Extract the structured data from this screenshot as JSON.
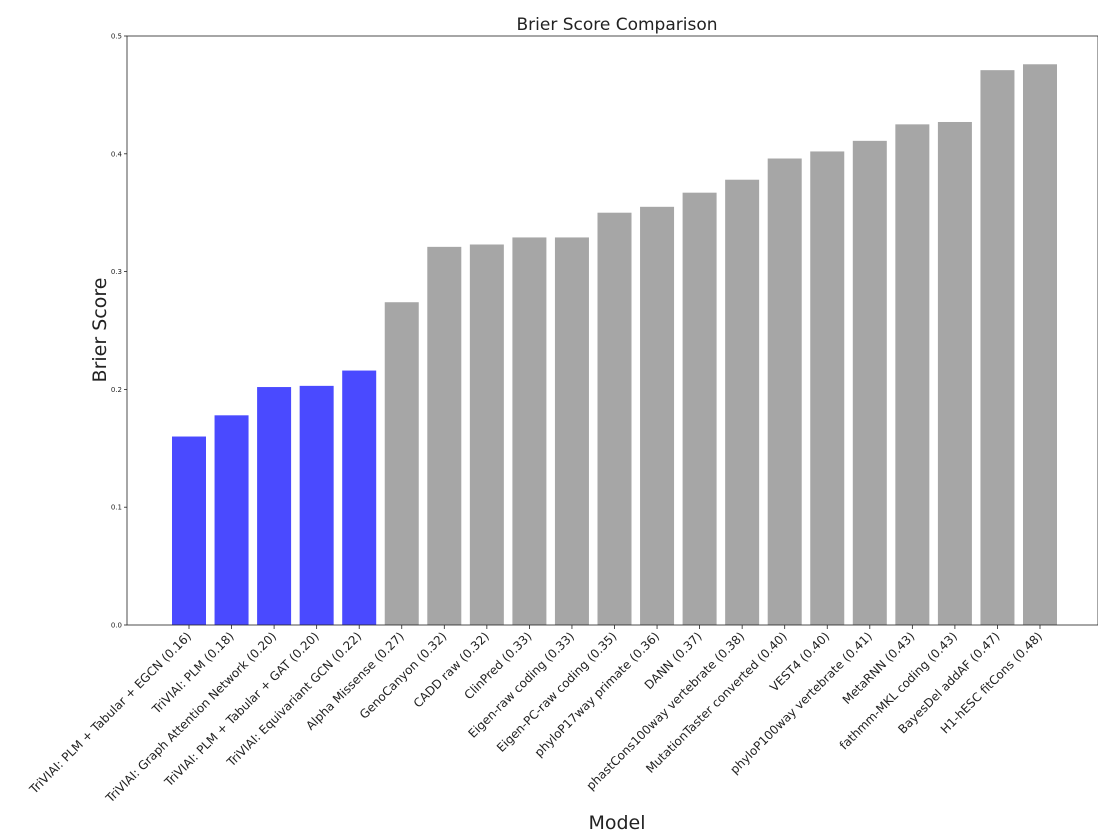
{
  "chart_data": {
    "type": "bar",
    "title": "Brier Score Comparison",
    "xlabel": "Model",
    "ylabel": "Brier Score",
    "ylim": [
      0,
      0.5
    ],
    "yticks": [
      "0.0",
      "0.1",
      "0.2",
      "0.3",
      "0.4",
      "0.5"
    ],
    "grid": false,
    "colors": {
      "highlight": "#4a4aff",
      "baseline": "#a6a6a6"
    },
    "categories": [
      "TriVIAI: PLM + Tabular + EGCN (0.16)",
      "TriVIAI: PLM (0.18)",
      "TriVIAI: Graph Attention Network (0.20)",
      "TriVIAI: PLM + Tabular + GAT (0.20)",
      "TriVIAI: Equivariant GCN (0.22)",
      "Alpha Missense (0.27)",
      "GenoCanyon (0.32)",
      "CADD raw (0.32)",
      "ClinPred (0.33)",
      "Eigen-raw coding (0.33)",
      "Eigen-PC-raw coding (0.35)",
      "phyloP17way primate (0.36)",
      "DANN (0.37)",
      "phastCons100way vertebrate (0.38)",
      "MutationTaster converted (0.40)",
      "VEST4 (0.40)",
      "phyloP100way vertebrate (0.41)",
      "MetaRNN (0.43)",
      "fathmm-MKL coding (0.43)",
      "BayesDel addAF (0.47)",
      "H1-hESC fitCons (0.48)"
    ],
    "values": [
      0.16,
      0.178,
      0.202,
      0.203,
      0.216,
      0.274,
      0.321,
      0.323,
      0.329,
      0.329,
      0.35,
      0.355,
      0.367,
      0.378,
      0.396,
      0.402,
      0.411,
      0.425,
      0.427,
      0.471,
      0.476
    ],
    "highlighted": [
      true,
      true,
      true,
      true,
      true,
      false,
      false,
      false,
      false,
      false,
      false,
      false,
      false,
      false,
      false,
      false,
      false,
      false,
      false,
      false,
      false
    ]
  }
}
